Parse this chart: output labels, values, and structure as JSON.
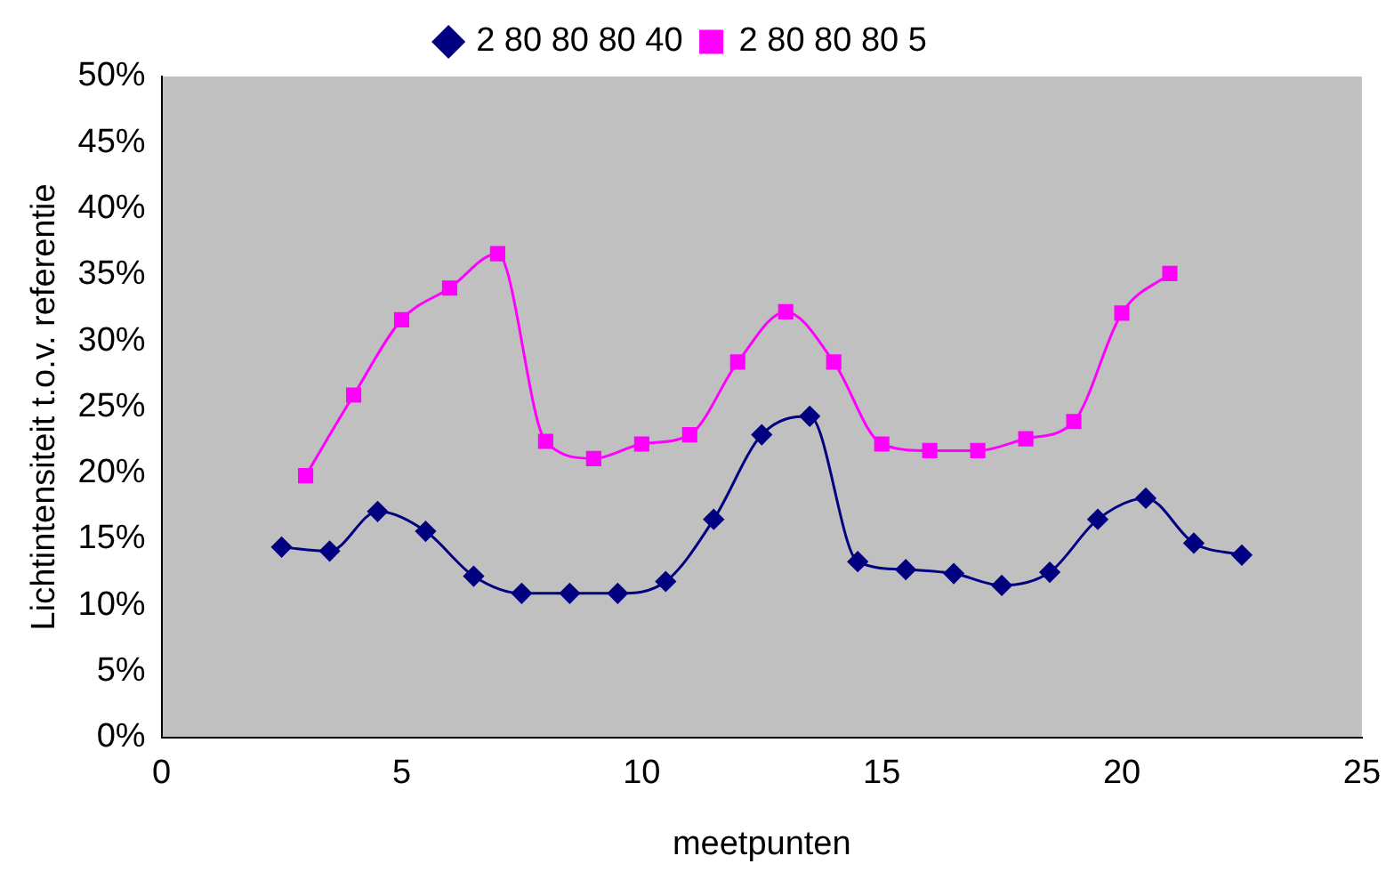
{
  "chart_data": {
    "type": "line",
    "xlabel": "meetpunten",
    "ylabel": "Lichtintensiteit t.o.v. referentie",
    "legend": "top",
    "grid": false,
    "line_style": "solid",
    "xlim": [
      0,
      25
    ],
    "xticks": [
      0,
      5,
      10,
      15,
      20,
      25
    ],
    "ylim": [
      0,
      50
    ],
    "yticks": [
      {
        "value": 0,
        "label": "0%"
      },
      {
        "value": 5,
        "label": "5%"
      },
      {
        "value": 10,
        "label": "10%"
      },
      {
        "value": 15,
        "label": "15%"
      },
      {
        "value": 20,
        "label": "20%"
      },
      {
        "value": 25,
        "label": "25%"
      },
      {
        "value": 30,
        "label": "30%"
      },
      {
        "value": 35,
        "label": "35%"
      },
      {
        "value": 40,
        "label": "40%"
      },
      {
        "value": 45,
        "label": "45%"
      },
      {
        "value": 50,
        "label": "50%"
      }
    ],
    "series": [
      {
        "name": "2 80 80 80 40",
        "color": "#000080",
        "marker": "diamond",
        "x": [
          2.5,
          3.5,
          4.5,
          5.5,
          6.5,
          7.5,
          8.5,
          9.5,
          10.5,
          11.5,
          12.5,
          13.5,
          14.5,
          15.5,
          16.5,
          17.5,
          18.5,
          19.5,
          20.5,
          21.5,
          22.5
        ],
        "values": [
          14.4,
          14.1,
          17.1,
          15.6,
          12.2,
          10.9,
          10.9,
          10.9,
          11.8,
          16.5,
          22.9,
          24.3,
          13.3,
          12.7,
          12.4,
          11.5,
          12.5,
          16.5,
          18.1,
          14.7,
          13.8
        ]
      },
      {
        "name": "2 80 80 80 5",
        "color": "#ff00ff",
        "marker": "square",
        "x": [
          3,
          4,
          5,
          6,
          7,
          8,
          9,
          10,
          11,
          12,
          13,
          14,
          15,
          16,
          17,
          18,
          19,
          20,
          21
        ],
        "values": [
          19.8,
          25.9,
          31.6,
          34.0,
          36.6,
          22.4,
          21.1,
          22.2,
          22.9,
          28.4,
          32.2,
          28.4,
          22.2,
          21.7,
          21.7,
          22.6,
          23.9,
          32.1,
          35.1
        ]
      }
    ]
  }
}
